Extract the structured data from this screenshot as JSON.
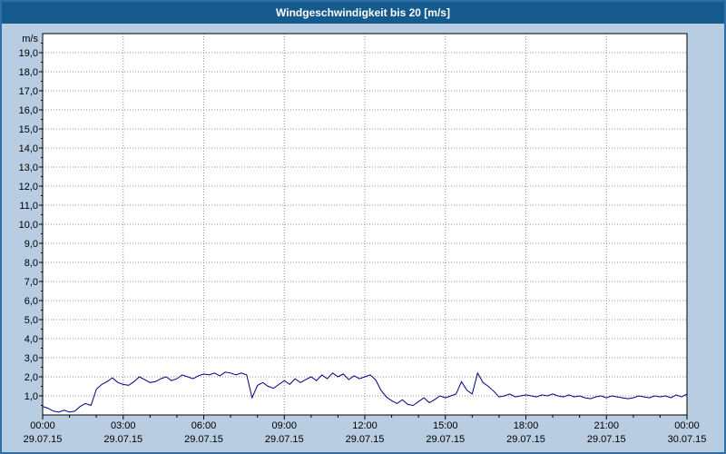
{
  "colors": {
    "title_bar": "#155a8c",
    "window_background": "#b8cce2",
    "plot_background": "#ffffff",
    "grid": "#909090",
    "line": "#000080"
  },
  "chart_data": {
    "type": "line",
    "title": "Windgeschwindigkeit bis 20 [m/s]",
    "unit": "m/s",
    "ylim": [
      0,
      20
    ],
    "y_tick_step": 1.0,
    "grid": true,
    "legend": "none",
    "y_tick_labels": [
      "1,0",
      "2,0",
      "3,0",
      "4,0",
      "5,0",
      "6,0",
      "7,0",
      "8,0",
      "9,0",
      "10,0",
      "11,0",
      "12,0",
      "13,0",
      "14,0",
      "15,0",
      "16,0",
      "17,0",
      "18,0",
      "19,0"
    ],
    "x_ticks": [
      {
        "time": "00:00",
        "date": "29.07.15"
      },
      {
        "time": "03:00",
        "date": "29.07.15"
      },
      {
        "time": "06:00",
        "date": "29.07.15"
      },
      {
        "time": "09:00",
        "date": "29.07.15"
      },
      {
        "time": "12:00",
        "date": "29.07.15"
      },
      {
        "time": "15:00",
        "date": "29.07.15"
      },
      {
        "time": "18:00",
        "date": "29.07.15"
      },
      {
        "time": "21:00",
        "date": "29.07.15"
      },
      {
        "time": "00:00",
        "date": "30.07.15"
      }
    ],
    "xlim_hours": [
      0,
      24
    ],
    "series": [
      {
        "color": "#000080",
        "points": [
          [
            0,
            0.45
          ],
          [
            0.2,
            0.35
          ],
          [
            0.4,
            0.2
          ],
          [
            0.6,
            0.15
          ],
          [
            0.8,
            0.25
          ],
          [
            1.0,
            0.15
          ],
          [
            1.2,
            0.2
          ],
          [
            1.4,
            0.45
          ],
          [
            1.6,
            0.6
          ],
          [
            1.8,
            0.5
          ],
          [
            2.0,
            1.35
          ],
          [
            2.2,
            1.6
          ],
          [
            2.4,
            1.75
          ],
          [
            2.6,
            1.95
          ],
          [
            2.8,
            1.7
          ],
          [
            3.0,
            1.6
          ],
          [
            3.2,
            1.55
          ],
          [
            3.4,
            1.75
          ],
          [
            3.6,
            2.0
          ],
          [
            3.8,
            1.85
          ],
          [
            4.0,
            1.7
          ],
          [
            4.2,
            1.75
          ],
          [
            4.4,
            1.9
          ],
          [
            4.6,
            2.0
          ],
          [
            4.8,
            1.8
          ],
          [
            5.0,
            1.9
          ],
          [
            5.2,
            2.1
          ],
          [
            5.4,
            2.0
          ],
          [
            5.6,
            1.9
          ],
          [
            5.8,
            2.05
          ],
          [
            6.0,
            2.15
          ],
          [
            6.2,
            2.1
          ],
          [
            6.4,
            2.2
          ],
          [
            6.6,
            2.05
          ],
          [
            6.8,
            2.25
          ],
          [
            7.0,
            2.2
          ],
          [
            7.2,
            2.1
          ],
          [
            7.4,
            2.2
          ],
          [
            7.6,
            2.1
          ],
          [
            7.8,
            0.9
          ],
          [
            8.0,
            1.55
          ],
          [
            8.2,
            1.7
          ],
          [
            8.4,
            1.5
          ],
          [
            8.6,
            1.4
          ],
          [
            8.8,
            1.6
          ],
          [
            9.0,
            1.8
          ],
          [
            9.2,
            1.6
          ],
          [
            9.4,
            1.9
          ],
          [
            9.6,
            1.7
          ],
          [
            9.8,
            1.85
          ],
          [
            10.0,
            2.0
          ],
          [
            10.2,
            1.8
          ],
          [
            10.4,
            2.1
          ],
          [
            10.6,
            1.9
          ],
          [
            10.8,
            2.2
          ],
          [
            11.0,
            2.0
          ],
          [
            11.2,
            2.15
          ],
          [
            11.4,
            1.85
          ],
          [
            11.6,
            2.05
          ],
          [
            11.8,
            1.9
          ],
          [
            12.0,
            2.0
          ],
          [
            12.2,
            2.1
          ],
          [
            12.4,
            1.85
          ],
          [
            12.6,
            1.3
          ],
          [
            12.8,
            0.95
          ],
          [
            13.0,
            0.75
          ],
          [
            13.2,
            0.6
          ],
          [
            13.4,
            0.8
          ],
          [
            13.6,
            0.55
          ],
          [
            13.8,
            0.5
          ],
          [
            14.0,
            0.7
          ],
          [
            14.2,
            0.9
          ],
          [
            14.4,
            0.65
          ],
          [
            14.6,
            0.8
          ],
          [
            14.8,
            1.0
          ],
          [
            15.0,
            0.9
          ],
          [
            15.2,
            1.0
          ],
          [
            15.4,
            1.1
          ],
          [
            15.6,
            1.75
          ],
          [
            15.8,
            1.3
          ],
          [
            16.0,
            1.1
          ],
          [
            16.2,
            2.2
          ],
          [
            16.4,
            1.7
          ],
          [
            16.6,
            1.5
          ],
          [
            16.8,
            1.25
          ],
          [
            17.0,
            0.95
          ],
          [
            17.2,
            1.0
          ],
          [
            17.4,
            1.1
          ],
          [
            17.6,
            0.95
          ],
          [
            17.8,
            1.0
          ],
          [
            18.0,
            1.05
          ],
          [
            18.2,
            1.0
          ],
          [
            18.4,
            0.95
          ],
          [
            18.6,
            1.05
          ],
          [
            18.8,
            1.0
          ],
          [
            19.0,
            1.1
          ],
          [
            19.2,
            1.0
          ],
          [
            19.4,
            0.95
          ],
          [
            19.6,
            1.05
          ],
          [
            19.8,
            0.95
          ],
          [
            20.0,
            1.0
          ],
          [
            20.2,
            0.9
          ],
          [
            20.4,
            0.85
          ],
          [
            20.6,
            0.95
          ],
          [
            20.8,
            1.0
          ],
          [
            21.0,
            0.9
          ],
          [
            21.2,
            1.0
          ],
          [
            21.4,
            0.95
          ],
          [
            21.6,
            0.9
          ],
          [
            21.8,
            0.85
          ],
          [
            22.0,
            0.9
          ],
          [
            22.2,
            1.0
          ],
          [
            22.4,
            0.95
          ],
          [
            22.6,
            0.9
          ],
          [
            22.8,
            1.0
          ],
          [
            23.0,
            0.95
          ],
          [
            23.2,
            1.0
          ],
          [
            23.4,
            0.9
          ],
          [
            23.6,
            1.05
          ],
          [
            23.8,
            0.95
          ],
          [
            24,
            1.1
          ]
        ]
      }
    ]
  }
}
